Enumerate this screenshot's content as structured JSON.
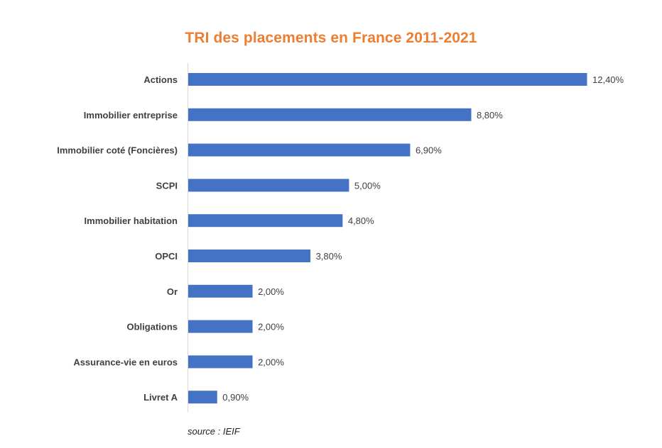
{
  "chart_data": {
    "type": "bar",
    "orientation": "horizontal",
    "title": "TRI des placements en France 2011-2021",
    "categories": [
      "Actions",
      "Immobilier entreprise",
      "Immobilier coté (Foncières)",
      "SCPI",
      "Immobilier habitation",
      "OPCI",
      "Or",
      "Obligations",
      "Assurance-vie en euros",
      "Livret A"
    ],
    "values": [
      12.4,
      8.8,
      6.9,
      5.0,
      4.8,
      3.8,
      2.0,
      2.0,
      2.0,
      0.9
    ],
    "data_labels": [
      "12,40%",
      "8,80%",
      "6,90%",
      "5,00%",
      "4,80%",
      "3,80%",
      "2,00%",
      "2,00%",
      "2,00%",
      "0,90%"
    ],
    "xlim": [
      0,
      12.4
    ],
    "xlabel": "",
    "ylabel": "",
    "grid": false,
    "legend": "none",
    "colors": {
      "bar": "#4472C4",
      "title": "#ED7D31",
      "axis": "#D9D9D9",
      "category_text": "#404040",
      "label_text": "#404040"
    }
  },
  "source": "source : IEIF"
}
